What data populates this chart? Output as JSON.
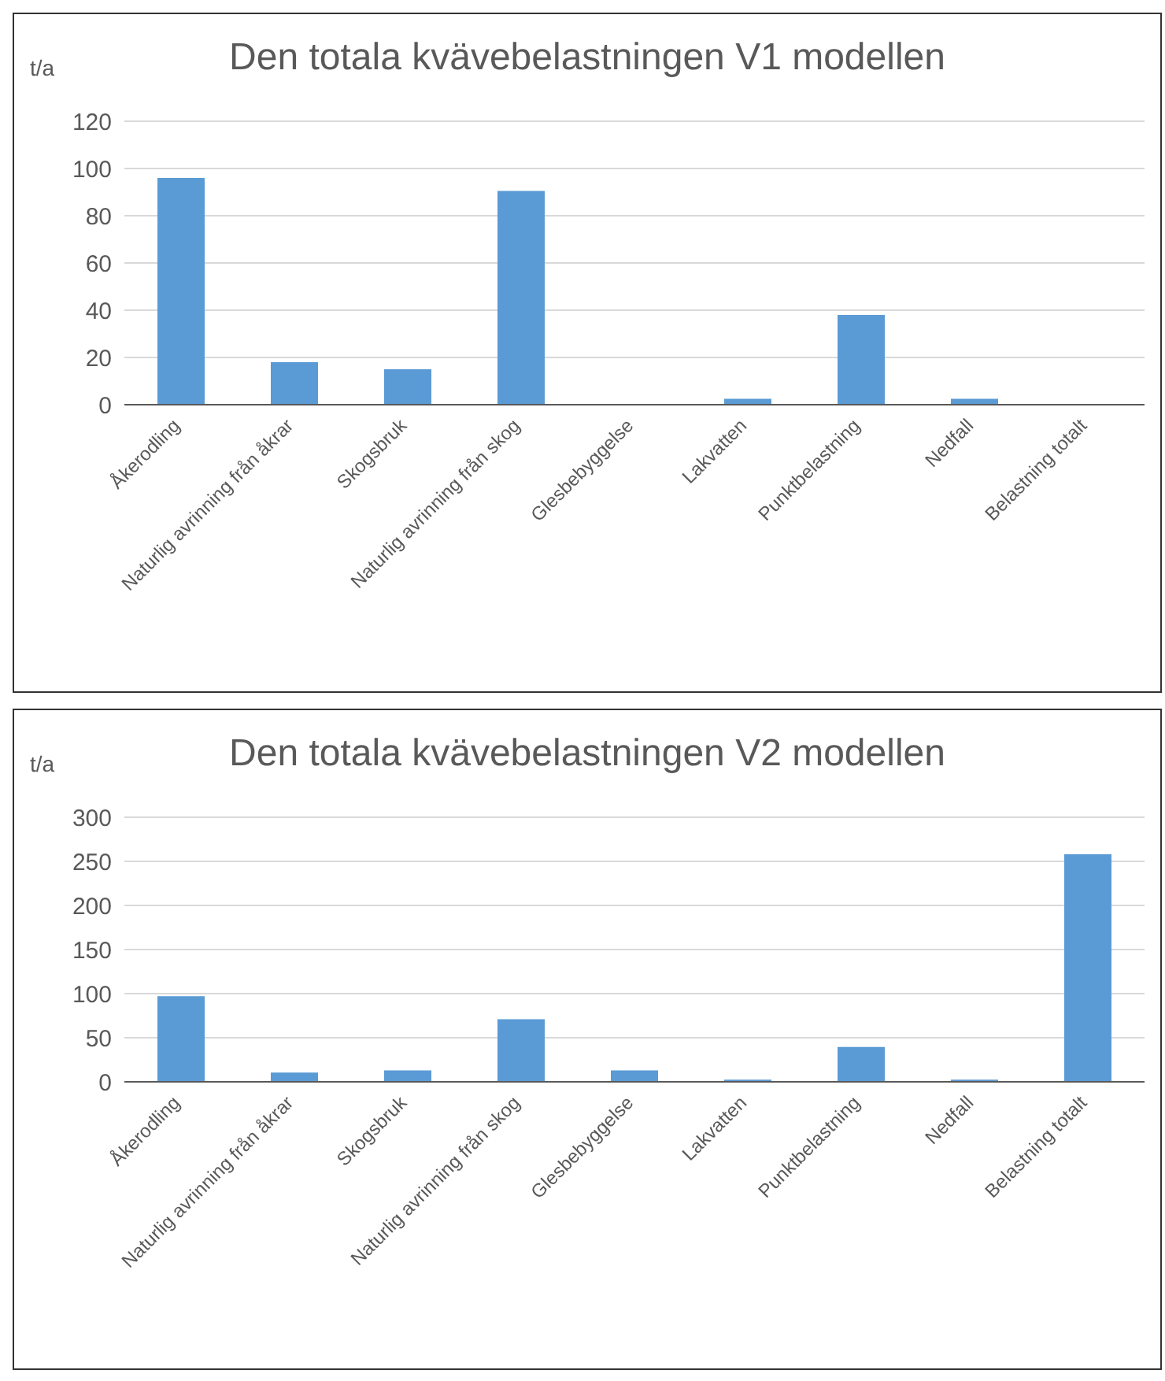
{
  "chart_data": [
    {
      "type": "bar",
      "title": "Den totala kvävebelastningen V1 modellen",
      "ylabel": "t/a",
      "categories": [
        "Åkerodling",
        "Naturlig avrinning från åkrar",
        "Skogsbruk",
        "Naturlig avrinning från skog",
        "Glesbebyggelse",
        "Lakvatten",
        "Punktbelastning",
        "Nedfall",
        "Belastning totalt"
      ],
      "values": [
        96,
        18,
        15,
        90.5,
        null,
        2.5,
        38,
        2.5,
        null
      ],
      "color": "#5b9bd5",
      "ylim": [
        0,
        120
      ],
      "yticks": [
        0,
        20,
        40,
        60,
        80,
        100,
        120
      ],
      "grid": "y",
      "legend": false
    },
    {
      "type": "bar",
      "title": "Den totala kvävebelastningen V2 modellen",
      "ylabel": "t/a",
      "categories": [
        "Åkerodling",
        "Naturlig avrinning från åkrar",
        "Skogsbruk",
        "Naturlig avrinning från skog",
        "Glesbebyggelse",
        "Lakvatten",
        "Punktbelastning",
        "Nedfall",
        "Belastning totalt"
      ],
      "values": [
        97,
        10.5,
        13,
        71,
        13,
        2.5,
        39.5,
        2.5,
        258
      ],
      "color": "#5b9bd5",
      "ylim": [
        0,
        300
      ],
      "yticks": [
        0,
        50,
        100,
        150,
        200,
        250,
        300
      ],
      "grid": "y",
      "legend": false
    }
  ]
}
